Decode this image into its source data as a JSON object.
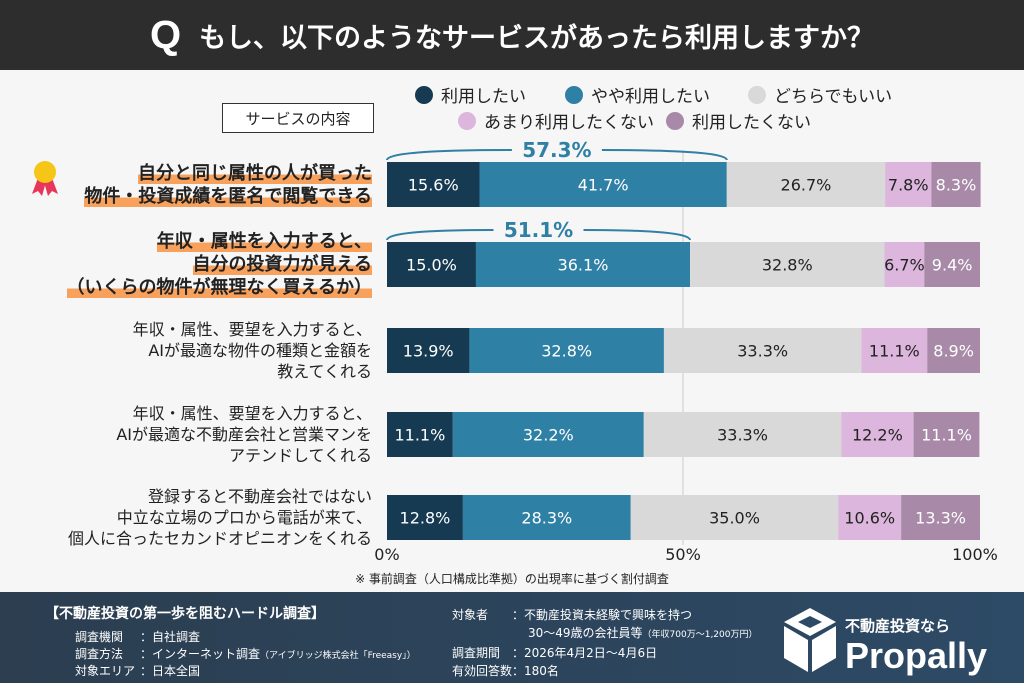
{
  "header": {
    "q": "Q",
    "title": "もし、以下のようなサービスがあったら利用しますか？"
  },
  "chart_data": {
    "type": "bar",
    "orientation": "horizontal",
    "stacked": true,
    "category_header": "サービスの内容",
    "categories": [
      [
        "自分と同じ属性の人が買った",
        "物件・投資成績を匿名で閲覧できる"
      ],
      [
        "年収・属性を入力すると、",
        "自分の投資力が見える",
        "（いくらの物件が無理なく買えるか）"
      ],
      [
        "年収・属性、要望を入力すると、",
        "AIが最適な物件の種類と金額を",
        "教えてくれる"
      ],
      [
        "年収・属性、要望を入力すると、",
        "AIが最適な不動産会社と営業マンを",
        "アテンドしてくれる"
      ],
      [
        "登録すると不動産会社ではない",
        "中立な立場のプロから電話が来て、",
        "個人に合ったセカンドオピニオンをくれる"
      ]
    ],
    "highlighted": [
      true,
      true,
      false,
      false,
      false
    ],
    "series": [
      {
        "name": "利用したい",
        "color": "#163a52",
        "values": [
          15.6,
          15.0,
          13.9,
          11.1,
          12.8
        ]
      },
      {
        "name": "やや利用したい",
        "color": "#2f80a5",
        "values": [
          41.7,
          36.1,
          32.8,
          32.2,
          28.3
        ]
      },
      {
        "name": "どちらでもいい",
        "color": "#d9d9d9",
        "values": [
          26.7,
          32.8,
          33.3,
          33.3,
          35.0
        ]
      },
      {
        "name": "あまり利用したくない",
        "color": "#dcb6dc",
        "values": [
          7.8,
          6.7,
          11.1,
          12.2,
          10.6
        ]
      },
      {
        "name": "利用したくない",
        "color": "#a88aa8",
        "values": [
          8.3,
          9.4,
          8.9,
          11.1,
          13.3
        ]
      }
    ],
    "annotations": [
      "57.3%",
      "51.1%",
      null,
      null,
      null
    ],
    "xlim": [
      0,
      100
    ],
    "xticks": [
      "0%",
      "50%",
      "100%"
    ],
    "note": "※ 事前調査（人口構成比準拠）の出現率に基づく割付調査"
  },
  "footer": {
    "title": "【不動産投資の第一歩を阻むハードル調査】",
    "rows": [
      {
        "k": "調査機関",
        "v": "：自社調査"
      },
      {
        "k": "調査方法",
        "v": "：インターネット調査",
        "s": "（アイブリッジ株式会社「Freeasy」）"
      },
      {
        "k": "対象エリア",
        "v": "：日本全国"
      }
    ],
    "target_k": "対象者",
    "target_v": "：不動産投資未経験で興味を持つ",
    "target_v2": "30～49歳の会社員等",
    "target_s": "（年収700万～1,200万円）",
    "period_k": "調査期間",
    "period_v": "：2026年4月2日～4月6日",
    "count_k": "有効回答数",
    "count_v": "：180名",
    "brand_tag": "不動産投資なら",
    "brand": "Propally"
  }
}
